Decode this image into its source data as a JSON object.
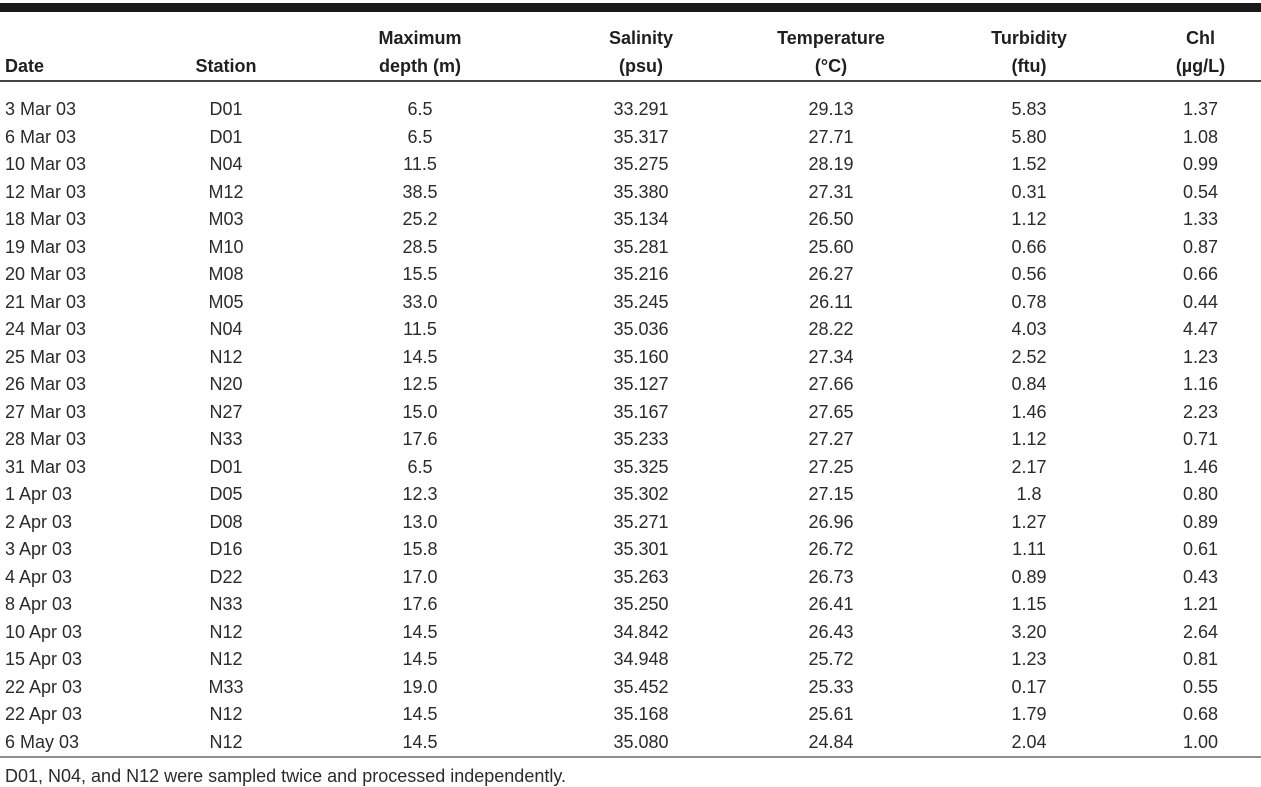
{
  "table": {
    "columns": [
      {
        "id": "date",
        "line1": "Date",
        "line2": ""
      },
      {
        "id": "station",
        "line1": "Station",
        "line2": ""
      },
      {
        "id": "max-depth",
        "line1": "Maximum",
        "line2": "depth (m)"
      },
      {
        "id": "salinity",
        "line1": "Salinity",
        "line2": "(psu)"
      },
      {
        "id": "temperature",
        "line1": "Temperature",
        "line2": "(°C)"
      },
      {
        "id": "turbidity",
        "line1": "Turbidity",
        "line2": "(ftu)"
      },
      {
        "id": "chl",
        "line1": "Chl",
        "line2": "(µg/L)"
      }
    ],
    "rows": [
      [
        "3 Mar 03",
        "D01",
        "6.5",
        "33.291",
        "29.13",
        "5.83",
        "1.37"
      ],
      [
        "6 Mar 03",
        "D01",
        "6.5",
        "35.317",
        "27.71",
        "5.80",
        "1.08"
      ],
      [
        "10 Mar 03",
        "N04",
        "11.5",
        "35.275",
        "28.19",
        "1.52",
        "0.99"
      ],
      [
        "12 Mar 03",
        "M12",
        "38.5",
        "35.380",
        "27.31",
        "0.31",
        "0.54"
      ],
      [
        "18 Mar 03",
        "M03",
        "25.2",
        "35.134",
        "26.50",
        "1.12",
        "1.33"
      ],
      [
        "19 Mar 03",
        "M10",
        "28.5",
        "35.281",
        "25.60",
        "0.66",
        "0.87"
      ],
      [
        "20 Mar 03",
        "M08",
        "15.5",
        "35.216",
        "26.27",
        "0.56",
        "0.66"
      ],
      [
        "21 Mar 03",
        "M05",
        "33.0",
        "35.245",
        "26.11",
        "0.78",
        "0.44"
      ],
      [
        "24 Mar 03",
        "N04",
        "11.5",
        "35.036",
        "28.22",
        "4.03",
        "4.47"
      ],
      [
        "25 Mar 03",
        "N12",
        "14.5",
        "35.160",
        "27.34",
        "2.52",
        "1.23"
      ],
      [
        "26 Mar 03",
        "N20",
        "12.5",
        "35.127",
        "27.66",
        "0.84",
        "1.16"
      ],
      [
        "27 Mar 03",
        "N27",
        "15.0",
        "35.167",
        "27.65",
        "1.46",
        "2.23"
      ],
      [
        "28 Mar 03",
        "N33",
        "17.6",
        "35.233",
        "27.27",
        "1.12",
        "0.71"
      ],
      [
        "31 Mar 03",
        "D01",
        "6.5",
        "35.325",
        "27.25",
        "2.17",
        "1.46"
      ],
      [
        "1 Apr 03",
        "D05",
        "12.3",
        "35.302",
        "27.15",
        "1.8",
        "0.80"
      ],
      [
        "2 Apr 03",
        "D08",
        "13.0",
        "35.271",
        "26.96",
        "1.27",
        "0.89"
      ],
      [
        "3 Apr 03",
        "D16",
        "15.8",
        "35.301",
        "26.72",
        "1.11",
        "0.61"
      ],
      [
        "4 Apr 03",
        "D22",
        "17.0",
        "35.263",
        "26.73",
        "0.89",
        "0.43"
      ],
      [
        "8 Apr 03",
        "N33",
        "17.6",
        "35.250",
        "26.41",
        "1.15",
        "1.21"
      ],
      [
        "10 Apr 03",
        "N12",
        "14.5",
        "34.842",
        "26.43",
        "3.20",
        "2.64"
      ],
      [
        "15 Apr 03",
        "N12",
        "14.5",
        "34.948",
        "25.72",
        "1.23",
        "0.81"
      ],
      [
        "22 Apr 03",
        "M33",
        "19.0",
        "35.452",
        "25.33",
        "0.17",
        "0.55"
      ],
      [
        "22 Apr 03",
        "N12",
        "14.5",
        "35.168",
        "25.61",
        "1.79",
        "0.68"
      ],
      [
        "6 May 03",
        "N12",
        "14.5",
        "35.080",
        "24.84",
        "2.04",
        "1.00"
      ]
    ],
    "footnote": "D01, N04, and N12 were sampled twice and processed independently."
  },
  "colors": {
    "top_rule": "#1a1a1a",
    "header_rule": "#454545",
    "bottom_rule": "#8f8f8f",
    "text": "#2b2b2b"
  }
}
